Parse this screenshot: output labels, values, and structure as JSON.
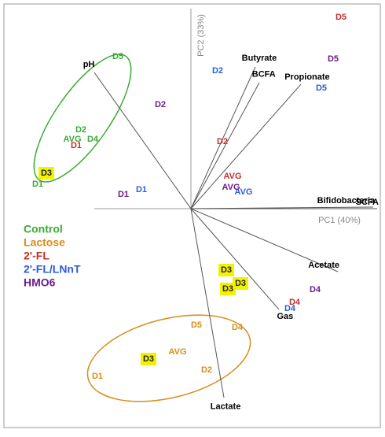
{
  "chart_data": {
    "type": "biplot",
    "xlabel": "PC1 (40%)",
    "ylabel": "PC2 (33%)",
    "xlim": [
      -2.38,
      2.41
    ],
    "ylim": [
      -2.78,
      2.6
    ],
    "highlight_color": "#f2f200",
    "series": [
      {
        "name": "Control",
        "color": "#3aa935",
        "labels": [
          "D5",
          "D2",
          "AVG",
          "D4",
          "D3",
          "D1"
        ],
        "x": [
          -0.93,
          -1.4,
          -1.51,
          -1.25,
          -1.84,
          -1.95
        ],
        "y": [
          1.93,
          1.0,
          0.88,
          0.88,
          0.45,
          0.31
        ],
        "highlighted": [
          false,
          false,
          false,
          false,
          true,
          false
        ]
      },
      {
        "name": "Lactose",
        "color": "#d98c1a",
        "labels": [
          "D5",
          "D4",
          "AVG",
          "D3",
          "D2",
          "D1"
        ],
        "x": [
          0.07,
          0.59,
          -0.17,
          -0.54,
          0.2,
          -1.19
        ],
        "y": [
          -1.48,
          -1.51,
          -1.82,
          -1.91,
          -2.05,
          -2.13
        ],
        "highlighted": [
          false,
          false,
          false,
          true,
          false,
          false
        ]
      },
      {
        "name": "2'-FL",
        "color": "#c0302a",
        "labels": [
          "D5",
          "D2",
          "D1",
          "AVG",
          "D3",
          "D4"
        ],
        "x": [
          1.91,
          0.4,
          -1.46,
          0.53,
          0.45,
          1.32
        ],
        "y": [
          2.43,
          0.85,
          0.8,
          0.41,
          -0.78,
          -1.19
        ],
        "highlighted": [
          false,
          false,
          false,
          false,
          true,
          false
        ]
      },
      {
        "name": "2'-FL/LNnT",
        "color": "#2a5cdc",
        "labels": [
          "D2",
          "D5",
          "D1",
          "AVG",
          "D3",
          "D4"
        ],
        "x": [
          0.34,
          1.66,
          -0.63,
          0.67,
          0.63,
          1.26
        ],
        "y": [
          1.75,
          1.53,
          0.24,
          0.21,
          -0.95,
          -1.27
        ],
        "highlighted": [
          false,
          false,
          false,
          false,
          true,
          false
        ]
      },
      {
        "name": "HMO6",
        "color": "#6a1b8a",
        "labels": [
          "D5",
          "D2",
          "D1",
          "AVG",
          "D3",
          "D4"
        ],
        "x": [
          1.81,
          -0.39,
          -0.86,
          0.51,
          0.47,
          1.58
        ],
        "y": [
          1.9,
          1.32,
          0.18,
          0.27,
          -1.02,
          -1.03
        ],
        "highlighted": [
          false,
          false,
          false,
          false,
          true,
          false
        ]
      }
    ],
    "loadings": {
      "names": [
        "pH",
        "Butyrate",
        "BCFA",
        "Propionate",
        "Bifidobacteria",
        "SCFA",
        "Acetate",
        "Gas",
        "Lactate"
      ],
      "x": [
        -1.23,
        0.82,
        0.87,
        1.4,
        2.32,
        2.37,
        1.87,
        1.12,
        0.42
      ],
      "y": [
        1.73,
        1.8,
        1.6,
        1.58,
        0.02,
        0.0,
        -0.8,
        -1.28,
        -2.4
      ]
    }
  }
}
